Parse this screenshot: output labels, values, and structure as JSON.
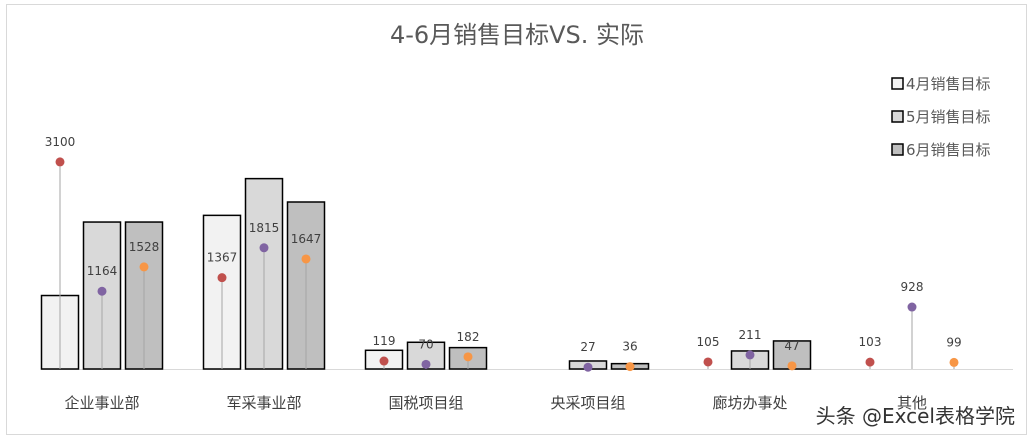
{
  "chart_data": {
    "type": "bar",
    "title": "4-6月销售目标VS. 实际",
    "categories": [
      "企业事业部",
      "军采事业部",
      "国税项目组",
      "央采项目组",
      "廊坊办事处",
      "其他"
    ],
    "series": [
      {
        "name": "4月销售目标",
        "values": [
          1100,
          2300,
          280,
          0,
          0,
          0
        ]
      },
      {
        "name": "5月销售目标",
        "values": [
          2200,
          2850,
          400,
          120,
          270,
          0
        ]
      },
      {
        "name": "6月销售目标",
        "values": [
          2200,
          2500,
          320,
          80,
          420,
          0
        ]
      }
    ],
    "actual_series": [
      {
        "values": [
          3100,
          1367,
          119,
          null,
          105,
          103
        ]
      },
      {
        "values": [
          1164,
          1815,
          70,
          27,
          211,
          928
        ]
      },
      {
        "values": [
          1528,
          1647,
          182,
          36,
          47,
          99
        ]
      }
    ],
    "ylim": [
      0,
      5000
    ],
    "legend_position": "top-right",
    "colors": {
      "bar_fills": [
        "#f2f2f2",
        "#d9d9d9",
        "#bfbfbf"
      ],
      "bar_stroke": "#000000",
      "marker_colors": [
        "#c0504d",
        "#8064a2",
        "#f79646"
      ],
      "lollipop_line": "#a6a6a6",
      "axis": "#d9d9d9"
    }
  },
  "watermark": "头条 @Excel表格学院"
}
